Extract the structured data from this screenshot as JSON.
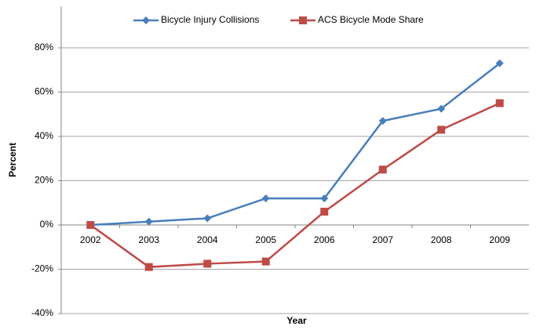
{
  "chart_data": {
    "type": "line",
    "categories": [
      "2002",
      "2003",
      "2004",
      "2005",
      "2006",
      "2007",
      "2008",
      "2009"
    ],
    "series": [
      {
        "name": "Bicycle Injury Collisions",
        "color": "#4a7ebb",
        "marker": "diamond",
        "values": [
          0,
          1.5,
          3,
          12,
          12,
          47,
          52.5,
          73
        ]
      },
      {
        "name": "ACS Bicycle Mode Share",
        "color": "#be4b48",
        "marker": "square",
        "values": [
          0,
          -19,
          -17.5,
          -16.5,
          6,
          25,
          43,
          55
        ]
      }
    ],
    "xlabel": "Year",
    "ylabel": "Percent",
    "ylim": [
      -40,
      100
    ],
    "yticks": [
      {
        "value": -40,
        "label": "-40%"
      },
      {
        "value": -20,
        "label": "-20%"
      },
      {
        "value": 0,
        "label": "0%"
      },
      {
        "value": 20,
        "label": "20%"
      },
      {
        "value": 40,
        "label": "40%"
      },
      {
        "value": 60,
        "label": "60%"
      },
      {
        "value": 80,
        "label": "80%"
      }
    ],
    "grid": true,
    "legend": "top"
  }
}
